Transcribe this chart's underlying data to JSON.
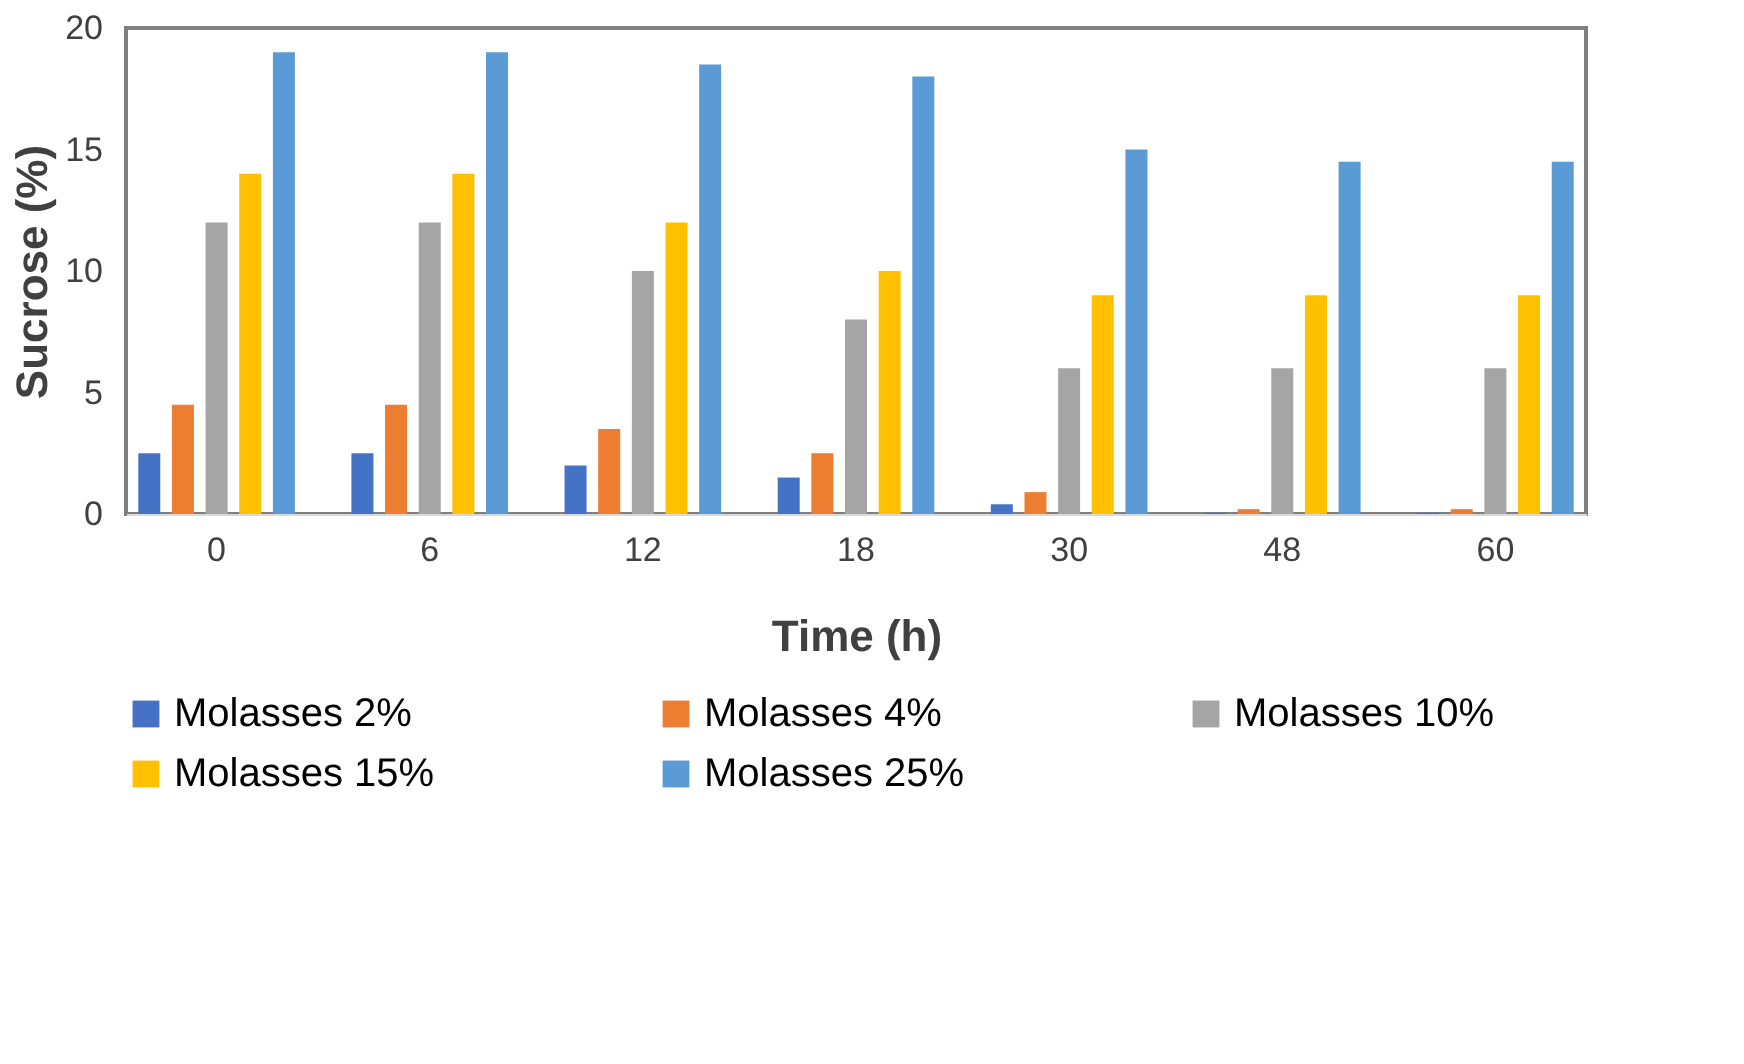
{
  "chart_data": {
    "type": "bar",
    "xlabel": "Time (h)",
    "ylabel": "Sucrose (%)",
    "categories": [
      "0",
      "6",
      "12",
      "18",
      "30",
      "48",
      "60"
    ],
    "series": [
      {
        "name": "Molasses 2%",
        "color": "#4472c4",
        "values": [
          2.5,
          2.5,
          2,
          1.5,
          0.4,
          0.05,
          0.05
        ]
      },
      {
        "name": "Molasses 4%",
        "color": "#ed7d31",
        "values": [
          4.5,
          4.5,
          3.5,
          2.5,
          0.9,
          0.2,
          0.2
        ]
      },
      {
        "name": "Molasses 10%",
        "color": "#a5a5a5",
        "values": [
          12,
          12,
          10,
          8,
          6,
          6,
          6
        ]
      },
      {
        "name": "Molasses 15%",
        "color": "#ffc000",
        "values": [
          14,
          14,
          12,
          10,
          9,
          9,
          9
        ]
      },
      {
        "name": "Molasses 25%",
        "color": "#5b9bd5",
        "values": [
          19,
          19,
          18.5,
          18,
          15,
          14.5,
          14.5
        ]
      }
    ],
    "ylim": [
      0,
      20
    ],
    "yticks": [
      0,
      5,
      10,
      15,
      20
    ],
    "grid": false,
    "legend": "bottom"
  }
}
